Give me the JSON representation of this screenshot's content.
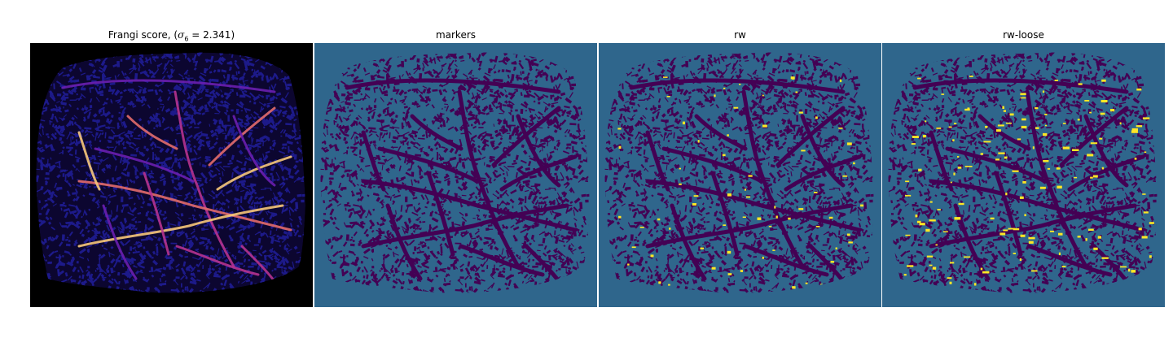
{
  "figure": {
    "panels": [
      {
        "id": "frangi",
        "title_text": "Frangi score, (",
        "title_math": "σ",
        "title_sub": "6",
        "title_tail": " = 2.341)",
        "background": "#000000",
        "speckle": "#1d1a8a",
        "vessel_colors": [
          "#6a1fb0",
          "#b6338f",
          "#e36b6b",
          "#f7c87a"
        ]
      },
      {
        "id": "markers",
        "title": "markers",
        "background": "#2f668c",
        "speckle": "#440154"
      },
      {
        "id": "rw",
        "title": "rw",
        "background": "#2f668c",
        "speckle": "#440154",
        "highlight": "#fde725"
      },
      {
        "id": "rw-loose",
        "title": "rw-loose",
        "background": "#2f668c",
        "speckle": "#440154",
        "highlight": "#fde725"
      }
    ]
  }
}
